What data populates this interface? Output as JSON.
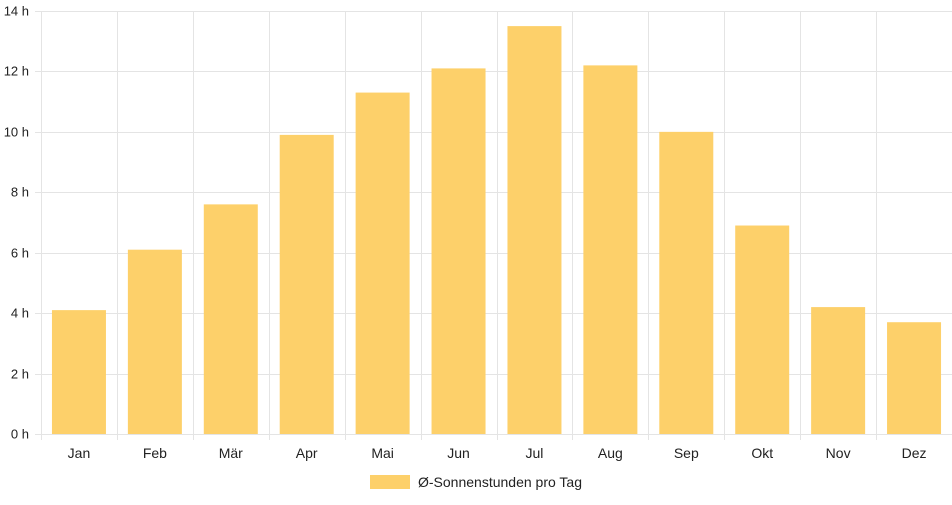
{
  "chart_data": {
    "type": "bar",
    "categories": [
      "Jan",
      "Feb",
      "Mär",
      "Apr",
      "Mai",
      "Jun",
      "Jul",
      "Aug",
      "Sep",
      "Okt",
      "Nov",
      "Dez"
    ],
    "series": [
      {
        "name": "Ø-Sonnenstunden pro Tag",
        "values": [
          4.1,
          6.1,
          7.6,
          9.9,
          11.3,
          12.1,
          13.5,
          12.2,
          10.0,
          6.9,
          4.2,
          3.7
        ]
      }
    ],
    "yticks": [
      "0 h",
      "2 h",
      "4 h",
      "6 h",
      "8 h",
      "10 h",
      "12 h",
      "14 h"
    ],
    "ylim": [
      0,
      14
    ],
    "grid": true,
    "legend_position": "bottom",
    "colors": {
      "bar": "#fdd06a",
      "grid": "#e4e4e4",
      "text": "#222222"
    }
  }
}
